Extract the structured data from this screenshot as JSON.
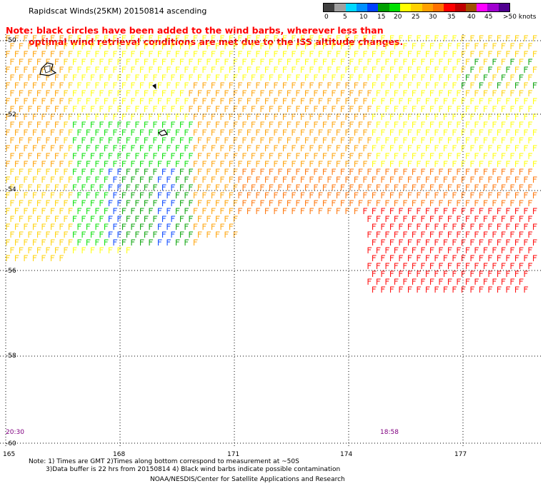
{
  "title": "Rapidscat Winds(25KM) 20150814 ascending",
  "note": {
    "line1": "Note: black circles have been added to the wind barbs, wherever less than",
    "line2": "optimal wind retrieval conditions are met due to the ISS altitude changes."
  },
  "legend": {
    "colors": [
      "#404040",
      "#a0a0a0",
      "#00d8ff",
      "#0090ff",
      "#0040ff",
      "#00a000",
      "#00e000",
      "#ffff00",
      "#ffd000",
      "#ffa000",
      "#ff7000",
      "#ff0000",
      "#c00000",
      "#a05000",
      "#ff00ff",
      "#a000d0",
      "#500090"
    ],
    "labels": [
      "0",
      "5",
      "10",
      "15",
      "20",
      "25",
      "30",
      "35",
      "40",
      "45",
      ">50 knots"
    ]
  },
  "map": {
    "lat_labels": [
      "-50",
      "-52",
      "-54",
      "-56",
      "-58",
      "-60"
    ],
    "lon_labels": [
      "165",
      "168",
      "171",
      "174",
      "177"
    ],
    "time_labels": [
      "20:30",
      "18:58"
    ]
  },
  "footnotes": {
    "line1": "Note: 1) Times are GMT 2)Times along bottom correspond to measurement at ~50S",
    "line2": "3)Data buffer is 22 hrs from 20150814 4) Black wind barbs indicate possible contamination",
    "credit": "NOAA/NESDIS/Center for Satellite Applications and Research"
  }
}
